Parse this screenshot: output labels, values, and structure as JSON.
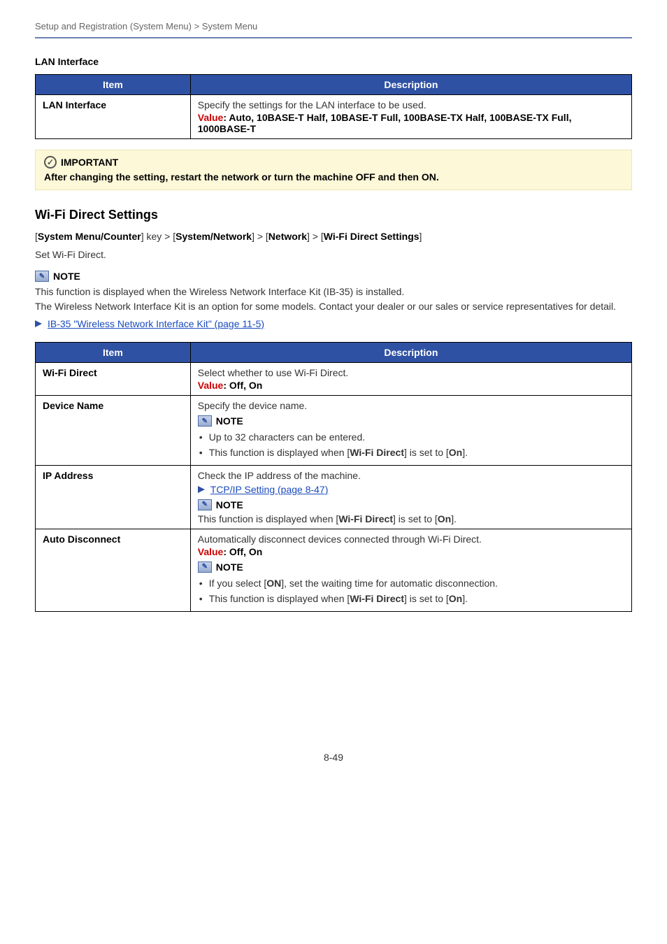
{
  "breadcrumb": "Setup and Registration (System Menu) > System Menu",
  "colors": {
    "accent": "#2e51a3",
    "value_red": "#c00",
    "link": "#1a4bbd",
    "important_bg": "#fdf8d8",
    "hr": "#6b7fb5"
  },
  "lan": {
    "heading": "LAN Interface",
    "headers": {
      "item": "Item",
      "desc": "Description"
    },
    "row": {
      "key": "LAN Interface",
      "desc": "Specify the settings for the LAN interface to be used.",
      "value_lead": "Value",
      "value_body": ": Auto, 10BASE-T Half, 10BASE-T Full, 100BASE-TX Half, 100BASE-TX Full, 1000BASE-T"
    }
  },
  "important": {
    "label": "IMPORTANT",
    "text": "After changing the setting, restart the network or turn the machine OFF and then ON."
  },
  "wifi": {
    "heading": "Wi-Fi Direct Settings",
    "path_prefix": "[",
    "path1": "System Menu/Counter",
    "path_mid1": "] key > [",
    "path2": "System/Network",
    "path_mid2": "] > [",
    "path3": "Network",
    "path_mid3": "] > [",
    "path4": "Wi-Fi Direct Settings",
    "path_suffix": "]",
    "subtext": "Set Wi-Fi Direct."
  },
  "note": {
    "label": "NOTE",
    "line1": "This function is displayed when the Wireless Network Interface Kit (IB-35) is installed.",
    "line2": "The Wireless Network Interface Kit is an option for some models. Contact your dealer or our sales or service representatives for detail.",
    "link": "IB-35 \"Wireless Network Interface Kit\" (page 11-5)"
  },
  "table2": {
    "headers": {
      "item": "Item",
      "desc": "Description"
    },
    "rows": {
      "wifi_direct": {
        "key": "Wi-Fi Direct",
        "desc": "Select whether to use Wi-Fi Direct.",
        "value_lead": "Value",
        "value_body": ": Off, On"
      },
      "device_name": {
        "key": "Device Name",
        "desc": "Specify the device name.",
        "note_label": "NOTE",
        "b1": "Up to 32 characters can be entered.",
        "b2_pre": "This function is displayed when [",
        "b2_bold1": "Wi-Fi Direct",
        "b2_mid": "] is set to [",
        "b2_bold2": "On",
        "b2_post": "]."
      },
      "ip_address": {
        "key": "IP Address",
        "desc": "Check the IP address of the machine.",
        "link": "TCP/IP Setting (page 8-47)",
        "note_label": "NOTE",
        "n_pre": "This function is displayed when [",
        "n_bold1": "Wi-Fi Direct",
        "n_mid": "] is set to [",
        "n_bold2": "On",
        "n_post": "]."
      },
      "auto_disc": {
        "key": "Auto Disconnect",
        "desc": "Automatically disconnect devices connected through Wi-Fi Direct.",
        "value_lead": "Value",
        "value_body": ": Off, On",
        "note_label": "NOTE",
        "b1_pre": "If you select [",
        "b1_bold": "ON",
        "b1_post": "], set the waiting time for automatic disconnection.",
        "b2_pre": "This function is displayed when [",
        "b2_bold1": "Wi-Fi Direct",
        "b2_mid": "] is set to [",
        "b2_bold2": "On",
        "b2_post": "]."
      }
    }
  },
  "page_number": "8-49"
}
